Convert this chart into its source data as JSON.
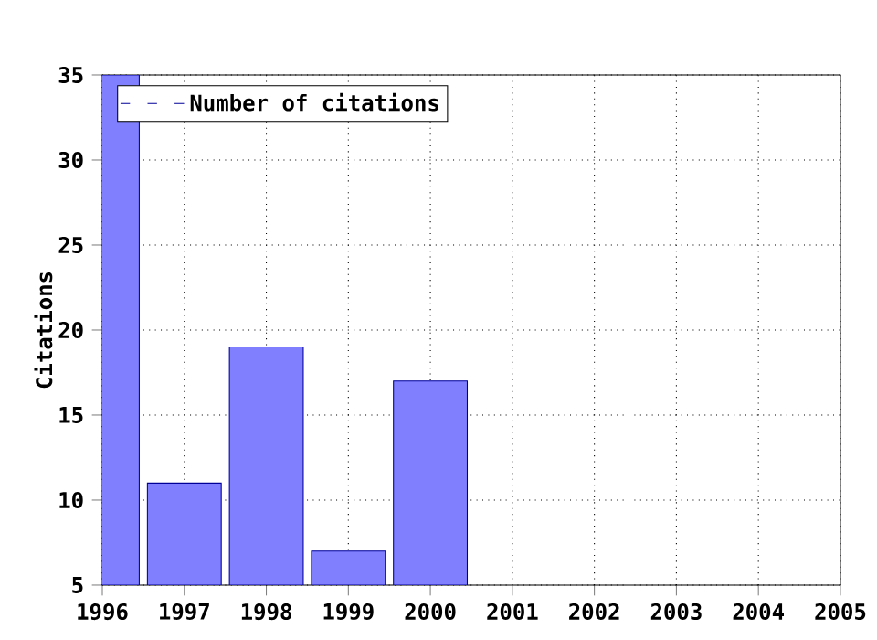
{
  "chart_data": {
    "type": "bar",
    "ylabel": "Citations",
    "x": [
      1996,
      1997,
      1998,
      1999,
      2000
    ],
    "series": [
      {
        "name": "Number of citations",
        "color": "#8080ff",
        "values": [
          35,
          11,
          19,
          7,
          17
        ]
      }
    ],
    "xlim": [
      1996,
      2005
    ],
    "xticks": [
      1996,
      1997,
      1998,
      1999,
      2000,
      2001,
      2002,
      2003,
      2004,
      2005
    ],
    "ylim": [
      5,
      35
    ],
    "yticks": [
      5,
      10,
      15,
      20,
      25,
      30,
      35
    ],
    "grid": true,
    "legend": "top left"
  }
}
